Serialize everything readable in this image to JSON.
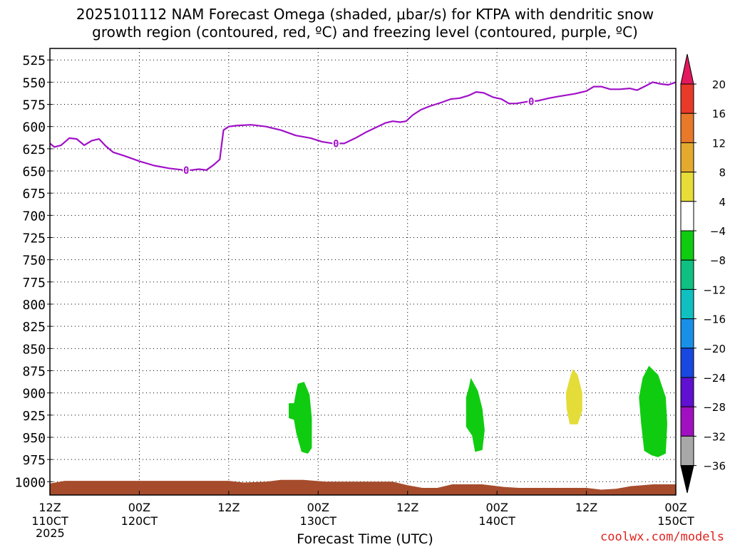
{
  "title_line1": "2025101112 NAM Forecast Omega (shaded, μbar/s) for KTPA with dendritic snow",
  "title_line2": "growth region (contoured, red, ºC) and freezing level (contoured, purple, ºC)",
  "credit": "coolwx.com/models",
  "chart_data": {
    "type": "time-height",
    "xlabel": "Forecast Time (UTC)",
    "year_label": "2025",
    "x_range_hours": [
      0,
      84
    ],
    "x_ticks": [
      {
        "hour": 0,
        "line1": "12Z",
        "line2": "110CT"
      },
      {
        "hour": 12,
        "line1": "00Z",
        "line2": "120CT"
      },
      {
        "hour": 24,
        "line1": "12Z",
        "line2": ""
      },
      {
        "hour": 36,
        "line1": "00Z",
        "line2": "130CT"
      },
      {
        "hour": 48,
        "line1": "12Z",
        "line2": ""
      },
      {
        "hour": 60,
        "line1": "00Z",
        "line2": "140CT"
      },
      {
        "hour": 72,
        "line1": "12Z",
        "line2": ""
      },
      {
        "hour": 84,
        "line1": "00Z",
        "line2": "150CT"
      }
    ],
    "y_range_hpa": [
      512,
      1015
    ],
    "y_ticks": [
      525,
      550,
      575,
      600,
      625,
      650,
      675,
      700,
      725,
      750,
      775,
      800,
      825,
      850,
      875,
      900,
      925,
      950,
      975,
      1000
    ],
    "grid": "dotted",
    "colorbar": {
      "labels": [
        "20",
        "16",
        "12",
        "8",
        "4",
        "−4",
        "−8",
        "−12",
        "−16",
        "−20",
        "−24",
        "−28",
        "−32",
        "−36"
      ],
      "colors": [
        "#e4185f",
        "#e83a28",
        "#e8782a",
        "#e4aa2e",
        "#e8dc38",
        "#ffffff",
        "#10cc10",
        "#10c080",
        "#10c0c0",
        "#1890e8",
        "#1848e0",
        "#6010d0",
        "#a010c0",
        "#a8a8a8",
        "#000000"
      ]
    },
    "freezing_level": {
      "label": "0",
      "color": "#a010c8",
      "label_hours": [
        18.3,
        38.4,
        64.6
      ],
      "points": [
        [
          0.0,
          619
        ],
        [
          0.6,
          623
        ],
        [
          1.5,
          621
        ],
        [
          2.6,
          613
        ],
        [
          3.6,
          614
        ],
        [
          4.6,
          621
        ],
        [
          5.6,
          616
        ],
        [
          6.6,
          614
        ],
        [
          7.5,
          622
        ],
        [
          8.5,
          629
        ],
        [
          10,
          633
        ],
        [
          12,
          639
        ],
        [
          14,
          644
        ],
        [
          16,
          647
        ],
        [
          18,
          649
        ],
        [
          19,
          649
        ],
        [
          20,
          648
        ],
        [
          21,
          649
        ],
        [
          22,
          643
        ],
        [
          22.8,
          637
        ],
        [
          23.3,
          604
        ],
        [
          24.0,
          600
        ],
        [
          25,
          599
        ],
        [
          27,
          598
        ],
        [
          29,
          600
        ],
        [
          31,
          604
        ],
        [
          33,
          610
        ],
        [
          35,
          613
        ],
        [
          36.5,
          617
        ],
        [
          38,
          619
        ],
        [
          39.5,
          619
        ],
        [
          41,
          613
        ],
        [
          42.5,
          606
        ],
        [
          44,
          600
        ],
        [
          45,
          596
        ],
        [
          46,
          594
        ],
        [
          47,
          595
        ],
        [
          47.8,
          594
        ],
        [
          48.7,
          587
        ],
        [
          49.8,
          581
        ],
        [
          51,
          577
        ],
        [
          52.5,
          573
        ],
        [
          53.8,
          569
        ],
        [
          55,
          568
        ],
        [
          56.2,
          565
        ],
        [
          57.2,
          561
        ],
        [
          58.2,
          562
        ],
        [
          59.5,
          567
        ],
        [
          60.6,
          569
        ],
        [
          61.6,
          574
        ],
        [
          62.6,
          574
        ],
        [
          64,
          572
        ],
        [
          65.5,
          571
        ],
        [
          67,
          568
        ],
        [
          68.3,
          566
        ],
        [
          70.5,
          563
        ],
        [
          72,
          560
        ],
        [
          73,
          555
        ],
        [
          74,
          555
        ],
        [
          75.2,
          558
        ],
        [
          76.5,
          558
        ],
        [
          77.8,
          557
        ],
        [
          78.8,
          559
        ],
        [
          80.0,
          554
        ],
        [
          80.9,
          550
        ],
        [
          82,
          552
        ],
        [
          83,
          553
        ],
        [
          83.7,
          551
        ],
        [
          84,
          550
        ]
      ]
    },
    "omega_regions": [
      {
        "value_range": "-8 to -4",
        "color": "#10cc10",
        "points": [
          [
            33.3,
            890
          ],
          [
            34.1,
            888
          ],
          [
            34.8,
            902
          ],
          [
            35.1,
            928
          ],
          [
            35.1,
            962
          ],
          [
            34.6,
            968
          ],
          [
            33.8,
            966
          ],
          [
            33.1,
            945
          ],
          [
            32.8,
            930
          ],
          [
            32.1,
            928
          ],
          [
            32.1,
            912
          ],
          [
            32.8,
            912
          ],
          [
            33.1,
            898
          ]
        ]
      },
      {
        "value_range": "-8 to -4",
        "color": "#10cc10",
        "points": [
          [
            56.5,
            884
          ],
          [
            57.4,
            898
          ],
          [
            58.0,
            918
          ],
          [
            58.3,
            942
          ],
          [
            58.0,
            964
          ],
          [
            57.1,
            966
          ],
          [
            56.7,
            948
          ],
          [
            55.9,
            938
          ],
          [
            55.9,
            905
          ],
          [
            56.3,
            893
          ]
        ]
      },
      {
        "value_range": "4 to 8",
        "color": "#e4dc38",
        "points": [
          [
            70.2,
            874
          ],
          [
            70.8,
            880
          ],
          [
            71.4,
            900
          ],
          [
            71.4,
            920
          ],
          [
            70.8,
            935
          ],
          [
            69.8,
            935
          ],
          [
            69.4,
            918
          ],
          [
            69.3,
            900
          ],
          [
            69.8,
            884
          ]
        ]
      },
      {
        "value_range": "-8 to -4",
        "color": "#10cc10",
        "points": [
          [
            80.4,
            870
          ],
          [
            81.6,
            880
          ],
          [
            82.6,
            905
          ],
          [
            82.8,
            935
          ],
          [
            82.6,
            968
          ],
          [
            81.6,
            972
          ],
          [
            80.8,
            970
          ],
          [
            79.8,
            965
          ],
          [
            79.4,
            935
          ],
          [
            79.1,
            905
          ],
          [
            79.6,
            883
          ]
        ]
      }
    ],
    "terrain": {
      "color": "#a64c2c",
      "surface_points": [
        [
          0,
          1002
        ],
        [
          2,
          999
        ],
        [
          24,
          999
        ],
        [
          26,
          1001
        ],
        [
          29,
          1000
        ],
        [
          31,
          998
        ],
        [
          34,
          998
        ],
        [
          37,
          1000
        ],
        [
          46,
          1000
        ],
        [
          48,
          1004
        ],
        [
          50,
          1007
        ],
        [
          52,
          1007
        ],
        [
          54,
          1003
        ],
        [
          58,
          1003
        ],
        [
          61,
          1006
        ],
        [
          63,
          1007
        ],
        [
          72,
          1007
        ],
        [
          74,
          1009
        ],
        [
          76,
          1008
        ],
        [
          78,
          1005
        ],
        [
          81,
          1003
        ],
        [
          84,
          1003
        ]
      ]
    }
  }
}
